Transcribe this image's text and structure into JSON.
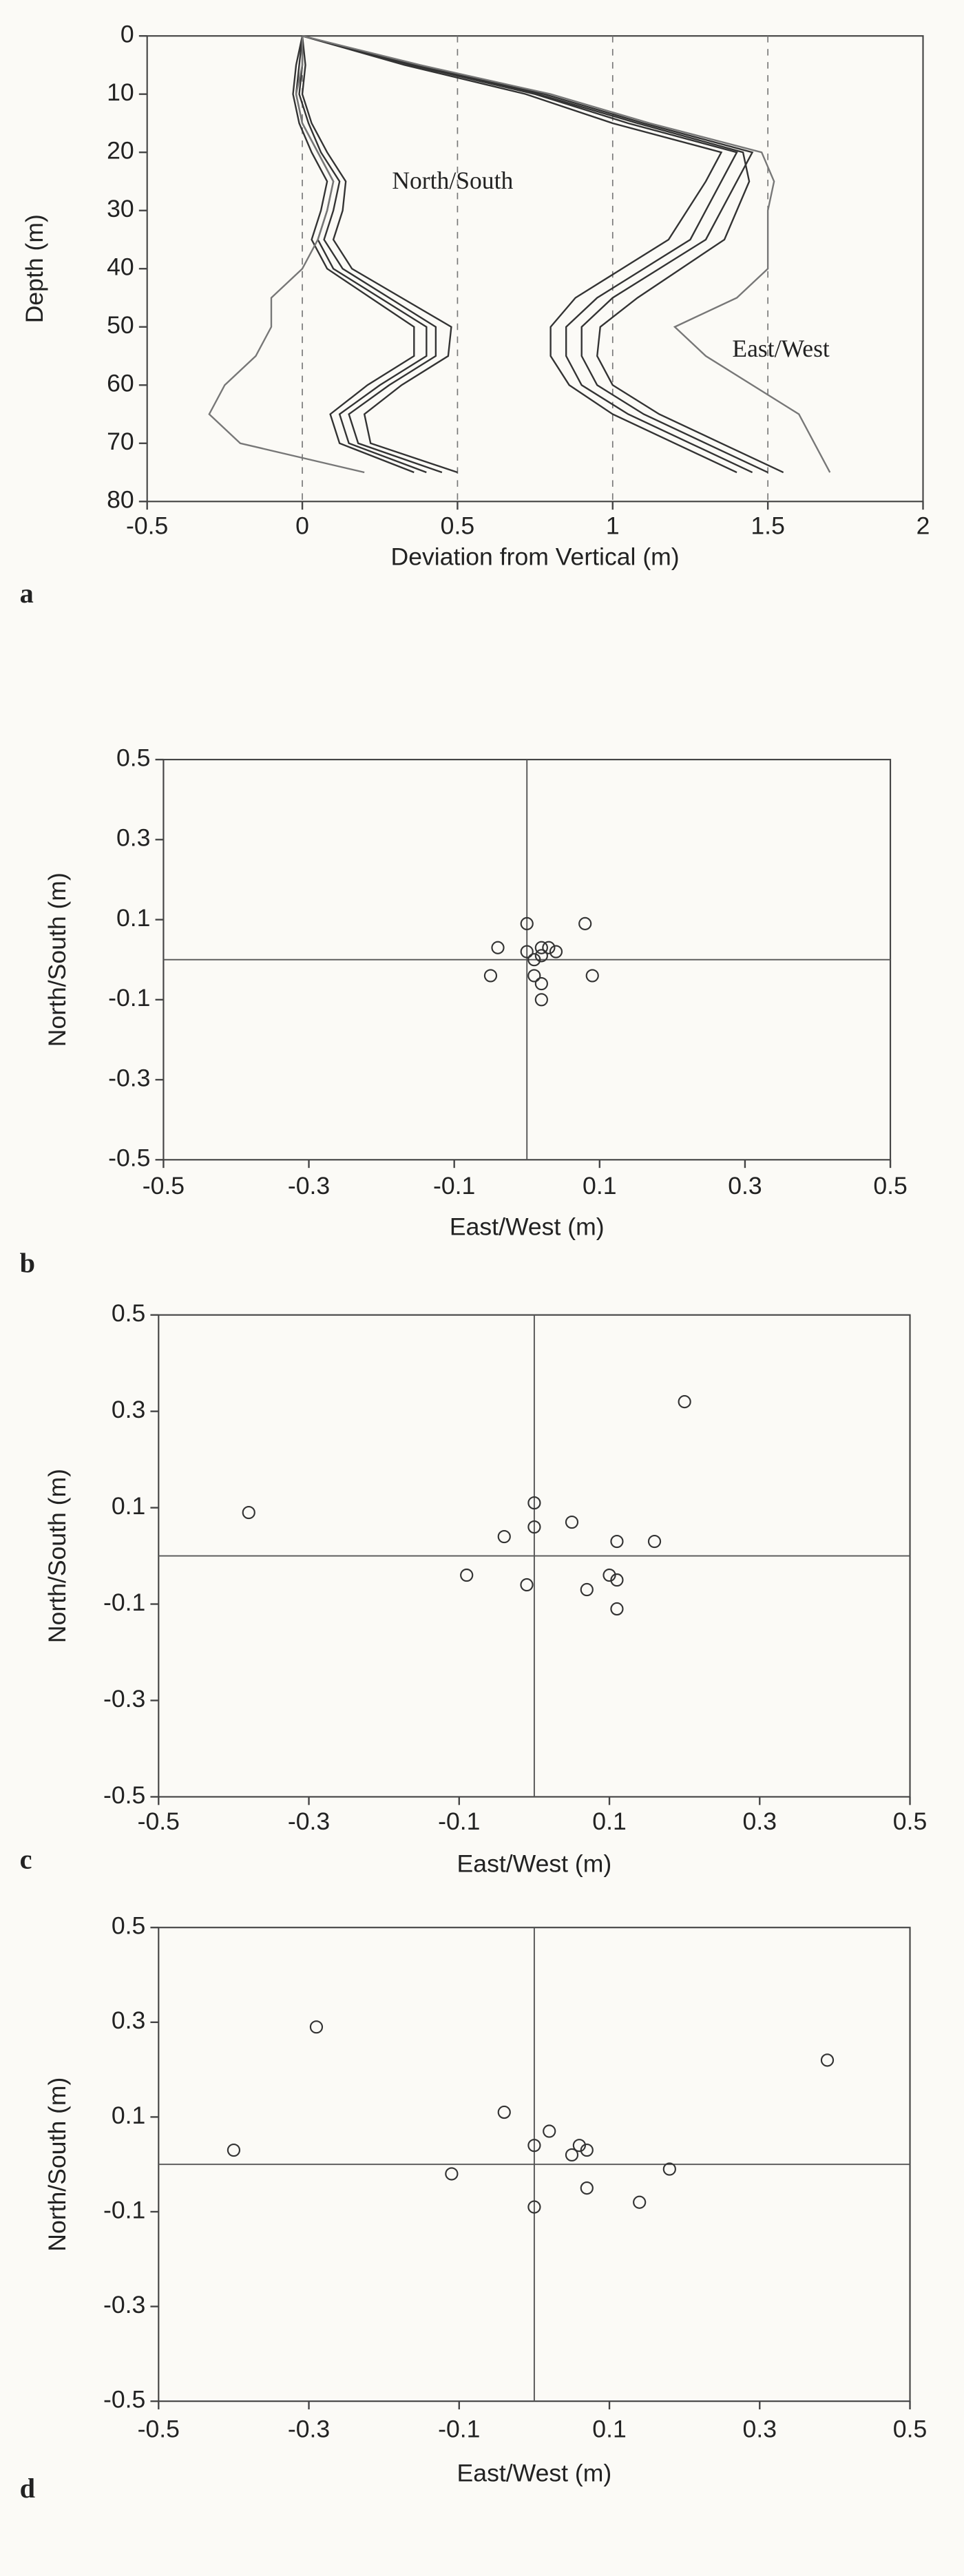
{
  "chart_data": [
    {
      "type": "line",
      "panel_label": "a",
      "xlabel": "Deviation from Vertical (m)",
      "ylabel": "Depth (m)",
      "annotations": [
        "North/South",
        "East/West"
      ],
      "xlim": [
        -0.5,
        2
      ],
      "xticks": [
        -0.5,
        0,
        0.5,
        1,
        1.5,
        2
      ],
      "ylim": [
        0,
        80
      ],
      "yticks": [
        0,
        10,
        20,
        30,
        40,
        50,
        60,
        70,
        80
      ],
      "y_inverted": true,
      "grid": "dashed",
      "depths": [
        0,
        5,
        10,
        15,
        20,
        25,
        30,
        35,
        40,
        45,
        50,
        55,
        60,
        65,
        70,
        75
      ],
      "series": [
        {
          "color": "#333333",
          "values": [
            0,
            -0.01,
            -0.02,
            0.0,
            0.05,
            0.1,
            0.08,
            0.05,
            0.1,
            0.25,
            0.4,
            0.4,
            0.25,
            0.12,
            0.15,
            0.4
          ]
        },
        {
          "color": "#333333",
          "values": [
            0,
            0.0,
            -0.01,
            0.02,
            0.06,
            0.12,
            0.1,
            0.07,
            0.13,
            0.28,
            0.43,
            0.43,
            0.28,
            0.15,
            0.18,
            0.45
          ]
        },
        {
          "color": "#333333",
          "values": [
            0,
            -0.02,
            -0.03,
            -0.01,
            0.03,
            0.08,
            0.06,
            0.03,
            0.08,
            0.22,
            0.36,
            0.36,
            0.21,
            0.09,
            0.12,
            0.36
          ]
        },
        {
          "color": "#333333",
          "values": [
            0,
            0.01,
            0.0,
            0.03,
            0.08,
            0.14,
            0.13,
            0.1,
            0.16,
            0.32,
            0.48,
            0.47,
            0.32,
            0.2,
            0.22,
            0.5
          ]
        },
        {
          "color": "#777777",
          "values": [
            0,
            0.0,
            -0.02,
            0.0,
            0.05,
            0.1,
            0.08,
            0.05,
            0.0,
            -0.1,
            -0.1,
            -0.15,
            -0.25,
            -0.3,
            -0.2,
            0.2
          ]
        },
        {
          "color": "#333333",
          "values": [
            0,
            0.35,
            0.75,
            1.05,
            1.4,
            1.35,
            1.3,
            1.25,
            1.1,
            0.95,
            0.85,
            0.85,
            0.9,
            1.05,
            1.25,
            1.45
          ]
        },
        {
          "color": "#333333",
          "values": [
            0,
            0.37,
            0.78,
            1.1,
            1.45,
            1.4,
            1.35,
            1.3,
            1.15,
            1.0,
            0.9,
            0.9,
            0.95,
            1.1,
            1.3,
            1.5
          ]
        },
        {
          "color": "#333333",
          "values": [
            0,
            0.33,
            0.72,
            1.0,
            1.35,
            1.3,
            1.24,
            1.18,
            1.03,
            0.88,
            0.8,
            0.8,
            0.86,
            1.0,
            1.2,
            1.4
          ]
        },
        {
          "color": "#333333",
          "values": [
            0,
            0.36,
            0.76,
            1.08,
            1.42,
            1.44,
            1.4,
            1.36,
            1.22,
            1.08,
            0.96,
            0.95,
            1.0,
            1.15,
            1.35,
            1.55
          ]
        },
        {
          "color": "#777777",
          "values": [
            0,
            0.38,
            0.8,
            1.12,
            1.48,
            1.52,
            1.5,
            1.5,
            1.5,
            1.4,
            1.2,
            1.3,
            1.45,
            1.6,
            1.65,
            1.7
          ]
        }
      ]
    },
    {
      "type": "scatter",
      "panel_label": "b",
      "xlabel": "East/West (m)",
      "ylabel": "North/South (m)",
      "xlim": [
        -0.5,
        0.5
      ],
      "xticks": [
        -0.5,
        -0.3,
        -0.1,
        0.1,
        0.3,
        0.5
      ],
      "ylim": [
        -0.5,
        0.5
      ],
      "yticks": [
        -0.5,
        -0.3,
        -0.1,
        0.1,
        0.3,
        0.5
      ],
      "zero_lines": true,
      "x": [
        0.0,
        0.08,
        -0.04,
        0.0,
        0.02,
        0.03,
        0.04,
        0.01,
        0.02,
        -0.05,
        0.01,
        0.02,
        0.02,
        0.09
      ],
      "y": [
        0.09,
        0.09,
        0.03,
        0.02,
        0.03,
        0.03,
        0.02,
        0.0,
        0.01,
        -0.04,
        -0.04,
        -0.06,
        -0.1,
        -0.04
      ]
    },
    {
      "type": "scatter",
      "panel_label": "c",
      "xlabel": "East/West (m)",
      "ylabel": "North/South (m)",
      "xlim": [
        -0.5,
        0.5
      ],
      "xticks": [
        -0.5,
        -0.3,
        -0.1,
        0.1,
        0.3,
        0.5
      ],
      "ylim": [
        -0.5,
        0.5
      ],
      "yticks": [
        -0.5,
        -0.3,
        -0.1,
        0.1,
        0.3,
        0.5
      ],
      "zero_lines": true,
      "x": [
        -0.38,
        0.2,
        0.0,
        0.0,
        -0.04,
        0.05,
        0.11,
        0.16,
        -0.09,
        -0.01,
        0.07,
        0.1,
        0.11,
        0.11
      ],
      "y": [
        0.09,
        0.32,
        0.11,
        0.06,
        0.04,
        0.07,
        0.03,
        0.03,
        -0.04,
        -0.06,
        -0.07,
        -0.04,
        -0.05,
        -0.11
      ]
    },
    {
      "type": "scatter",
      "panel_label": "d",
      "xlabel": "East/West (m)",
      "ylabel": "North/South (m)",
      "xlim": [
        -0.5,
        0.5
      ],
      "xticks": [
        -0.5,
        -0.3,
        -0.1,
        0.1,
        0.3,
        0.5
      ],
      "ylim": [
        -0.5,
        0.5
      ],
      "yticks": [
        -0.5,
        -0.3,
        -0.1,
        0.1,
        0.3,
        0.5
      ],
      "zero_lines": true,
      "x": [
        -0.29,
        -0.4,
        0.39,
        -0.04,
        0.02,
        0.0,
        0.06,
        0.07,
        0.05,
        -0.11,
        0.18,
        0.07,
        0.0,
        0.14
      ],
      "y": [
        0.29,
        0.03,
        0.22,
        0.11,
        0.07,
        0.04,
        0.04,
        0.03,
        0.02,
        -0.02,
        -0.01,
        -0.05,
        -0.09,
        -0.08
      ]
    }
  ]
}
